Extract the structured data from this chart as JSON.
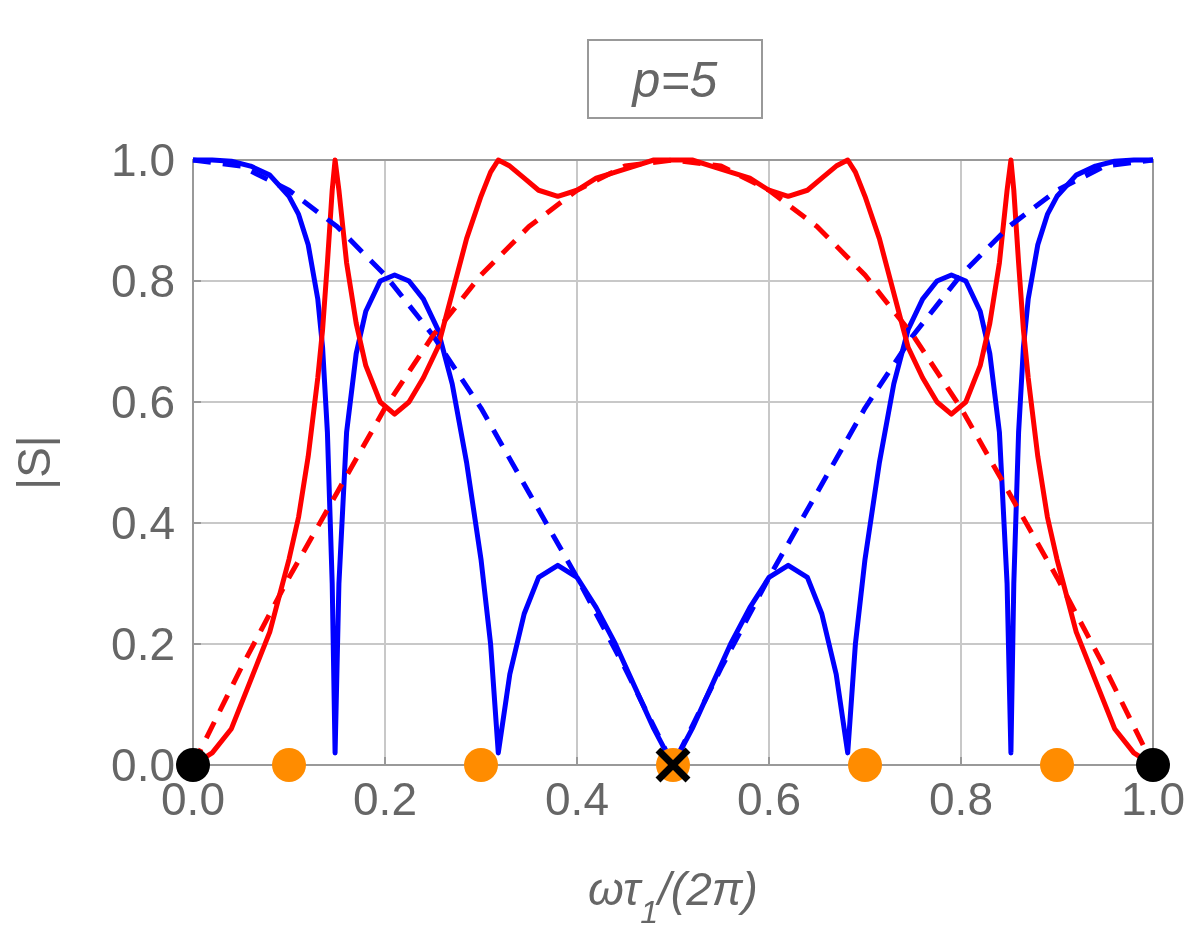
{
  "chart_data": {
    "type": "line",
    "title": "p=5",
    "xlabel": "ωτ$_{1}$/(2π)",
    "ylabel": "|S|",
    "xlim": [
      0,
      1
    ],
    "ylim": [
      0,
      1
    ],
    "xticks": [
      {
        "value": 0,
        "label": "0.0"
      },
      0.2,
      0.4,
      0.6,
      0.8,
      {
        "value": 1,
        "label": "1.0"
      }
    ],
    "yticks": [
      {
        "value": 0,
        "label": "0.0"
      },
      0.2,
      0.4,
      0.6,
      0.8,
      {
        "value": 1,
        "label": "1.0"
      }
    ],
    "grid": true,
    "series": [
      {
        "color": "#0000ff",
        "line_style": "solid",
        "x": [
          0,
          0.02,
          0.04,
          0.06,
          0.08,
          0.1,
          0.11,
          0.12,
          0.13,
          0.135,
          0.14,
          0.145,
          0.148,
          0.152,
          0.16,
          0.17,
          0.18,
          0.195,
          0.21,
          0.225,
          0.24,
          0.255,
          0.27,
          0.285,
          0.3,
          0.31,
          0.318,
          0.33,
          0.345,
          0.36,
          0.38,
          0.4,
          0.42,
          0.44,
          0.46,
          0.48,
          0.5,
          0.52,
          0.54,
          0.56,
          0.58,
          0.6,
          0.62,
          0.64,
          0.655,
          0.67,
          0.682,
          0.69,
          0.7,
          0.715,
          0.73,
          0.745,
          0.76,
          0.775,
          0.79,
          0.805,
          0.82,
          0.83,
          0.84,
          0.848,
          0.852,
          0.855,
          0.86,
          0.865,
          0.87,
          0.88,
          0.89,
          0.9,
          0.92,
          0.94,
          0.96,
          0.98,
          1
        ],
        "values": [
          1,
          1,
          0.998,
          0.99,
          0.975,
          0.94,
          0.91,
          0.86,
          0.77,
          0.69,
          0.55,
          0.3,
          0.02,
          0.3,
          0.55,
          0.68,
          0.75,
          0.8,
          0.81,
          0.8,
          0.77,
          0.72,
          0.63,
          0.5,
          0.34,
          0.2,
          0.02,
          0.15,
          0.25,
          0.31,
          0.33,
          0.31,
          0.26,
          0.2,
          0.13,
          0.06,
          0,
          0.06,
          0.13,
          0.2,
          0.26,
          0.31,
          0.33,
          0.31,
          0.25,
          0.15,
          0.02,
          0.2,
          0.34,
          0.5,
          0.63,
          0.72,
          0.77,
          0.8,
          0.81,
          0.8,
          0.75,
          0.68,
          0.55,
          0.3,
          0.02,
          0.3,
          0.55,
          0.69,
          0.77,
          0.86,
          0.91,
          0.94,
          0.975,
          0.99,
          0.998,
          1,
          1
        ]
      },
      {
        "color": "#ff0000",
        "line_style": "solid",
        "x": [
          0,
          0.02,
          0.04,
          0.06,
          0.08,
          0.1,
          0.11,
          0.12,
          0.13,
          0.135,
          0.14,
          0.145,
          0.148,
          0.152,
          0.16,
          0.17,
          0.18,
          0.195,
          0.21,
          0.225,
          0.24,
          0.255,
          0.27,
          0.285,
          0.3,
          0.31,
          0.318,
          0.33,
          0.345,
          0.36,
          0.38,
          0.4,
          0.42,
          0.44,
          0.46,
          0.48,
          0.5,
          0.52,
          0.54,
          0.56,
          0.58,
          0.6,
          0.62,
          0.64,
          0.655,
          0.67,
          0.682,
          0.69,
          0.7,
          0.715,
          0.73,
          0.745,
          0.76,
          0.775,
          0.79,
          0.805,
          0.82,
          0.83,
          0.84,
          0.848,
          0.852,
          0.855,
          0.86,
          0.865,
          0.87,
          0.88,
          0.89,
          0.9,
          0.92,
          0.94,
          0.96,
          0.98,
          1
        ],
        "values": [
          0,
          0.02,
          0.06,
          0.14,
          0.22,
          0.34,
          0.41,
          0.51,
          0.64,
          0.72,
          0.83,
          0.95,
          1,
          0.95,
          0.83,
          0.73,
          0.66,
          0.6,
          0.58,
          0.6,
          0.64,
          0.69,
          0.78,
          0.87,
          0.94,
          0.98,
          1,
          0.99,
          0.97,
          0.95,
          0.94,
          0.95,
          0.97,
          0.98,
          0.99,
          1,
          1,
          1,
          0.99,
          0.98,
          0.97,
          0.95,
          0.94,
          0.95,
          0.97,
          0.99,
          1,
          0.98,
          0.94,
          0.87,
          0.78,
          0.69,
          0.64,
          0.6,
          0.58,
          0.6,
          0.66,
          0.73,
          0.83,
          0.95,
          1,
          0.95,
          0.83,
          0.72,
          0.64,
          0.51,
          0.41,
          0.34,
          0.22,
          0.14,
          0.06,
          0.02,
          0
        ]
      },
      {
        "color": "#0000ff",
        "line_style": "dashed",
        "x": [
          0,
          0.05,
          0.1,
          0.15,
          0.2,
          0.25,
          0.3,
          0.35,
          0.4,
          0.45,
          0.5,
          0.55,
          0.6,
          0.65,
          0.7,
          0.75,
          0.8,
          0.85,
          0.9,
          0.95,
          1
        ],
        "values": [
          1,
          0.99,
          0.95,
          0.89,
          0.81,
          0.71,
          0.59,
          0.45,
          0.31,
          0.16,
          0,
          0.16,
          0.31,
          0.45,
          0.59,
          0.71,
          0.81,
          0.89,
          0.95,
          0.99,
          1
        ]
      },
      {
        "color": "#ff0000",
        "line_style": "dashed",
        "x": [
          0,
          0.05,
          0.1,
          0.15,
          0.2,
          0.25,
          0.3,
          0.35,
          0.4,
          0.45,
          0.5,
          0.55,
          0.6,
          0.65,
          0.7,
          0.75,
          0.8,
          0.85,
          0.9,
          0.95,
          1
        ],
        "values": [
          0,
          0.16,
          0.31,
          0.45,
          0.59,
          0.71,
          0.81,
          0.89,
          0.95,
          0.99,
          1,
          0.99,
          0.95,
          0.89,
          0.81,
          0.71,
          0.59,
          0.45,
          0.31,
          0.16,
          0
        ]
      },
      {
        "type": "scatter",
        "color": "#ff8c00",
        "marker": "circle",
        "x": [
          0.1,
          0.3,
          0.5,
          0.7,
          0.9
        ],
        "values": [
          0,
          0,
          0,
          0,
          0
        ]
      },
      {
        "type": "scatter",
        "color": "#000000",
        "marker": "circle",
        "x": [
          0,
          1
        ],
        "values": [
          0,
          0
        ]
      },
      {
        "type": "scatter",
        "color": "#000000",
        "marker": "cross",
        "x": [
          0.5
        ],
        "values": [
          0
        ]
      }
    ]
  }
}
